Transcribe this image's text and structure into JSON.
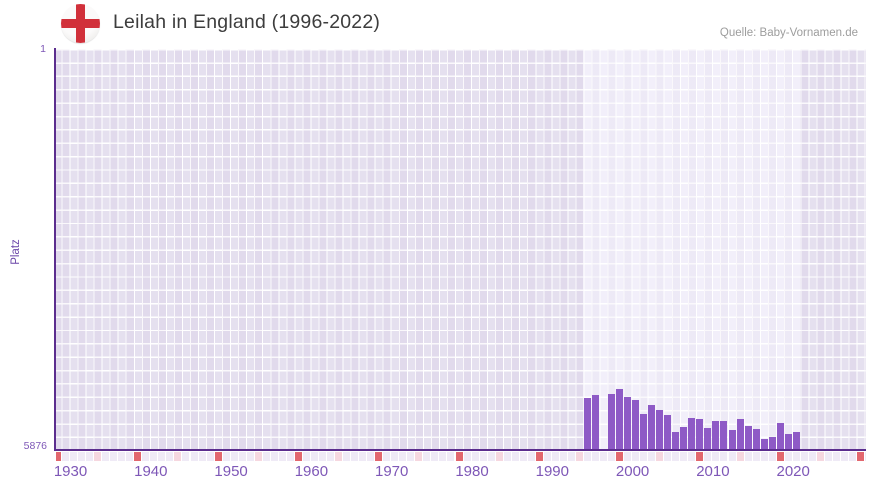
{
  "header": {
    "title": "Leilah in England (1996-2022)",
    "source": "Quelle: Baby-Vornamen.de",
    "flag_icon": "england-flag"
  },
  "colors": {
    "bar": "#8e5ac6",
    "axis_line": "#5b2d8e",
    "grid_cell": "#e5e0ef",
    "highlight_band": "#f2effa",
    "tick_label": "#7e57b7",
    "decade_marker": "#e2676e",
    "half_decade_marker": "#f6d7df",
    "year_marker": "#efeaf6",
    "title_text": "#3d3d3d",
    "source_text": "#9d9d9d",
    "flag_cross": "#d1303a"
  },
  "chart_data": {
    "type": "bar",
    "title": "Leilah in England (1996-2022)",
    "ylabel": "Platz",
    "y_axis": {
      "top_label": "1",
      "bottom_label": "5876",
      "min": 1,
      "max": 5876,
      "inverted": true
    },
    "x_axis": {
      "range_start": 1929,
      "range_end": 2031,
      "tick_labels": [
        "1930",
        "1940",
        "1950",
        "1960",
        "1970",
        "1980",
        "1990",
        "2000",
        "2010",
        "2020"
      ]
    },
    "highlight_range": [
      1996,
      2022
    ],
    "grid": true,
    "legend": false,
    "series": [
      {
        "year": 1996,
        "rank": 5110
      },
      {
        "year": 1997,
        "rank": 5065
      },
      {
        "year": 1998,
        "rank": null
      },
      {
        "year": 1999,
        "rank": 5050
      },
      {
        "year": 2000,
        "rank": 4980
      },
      {
        "year": 2001,
        "rank": 5095
      },
      {
        "year": 2002,
        "rank": 5145
      },
      {
        "year": 2003,
        "rank": 5345
      },
      {
        "year": 2004,
        "rank": 5220
      },
      {
        "year": 2005,
        "rank": 5285
      },
      {
        "year": 2006,
        "rank": 5360
      },
      {
        "year": 2007,
        "rank": 5605
      },
      {
        "year": 2008,
        "rank": 5540
      },
      {
        "year": 2009,
        "rank": 5405
      },
      {
        "year": 2010,
        "rank": 5425
      },
      {
        "year": 2011,
        "rank": 5555
      },
      {
        "year": 2012,
        "rank": 5445
      },
      {
        "year": 2013,
        "rank": 5445
      },
      {
        "year": 2014,
        "rank": 5585
      },
      {
        "year": 2015,
        "rank": 5425
      },
      {
        "year": 2016,
        "rank": 5525
      },
      {
        "year": 2017,
        "rank": 5570
      },
      {
        "year": 2018,
        "rank": 5720
      },
      {
        "year": 2019,
        "rank": 5680
      },
      {
        "year": 2020,
        "rank": 5475
      },
      {
        "year": 2021,
        "rank": 5645
      },
      {
        "year": 2022,
        "rank": 5605
      }
    ]
  }
}
